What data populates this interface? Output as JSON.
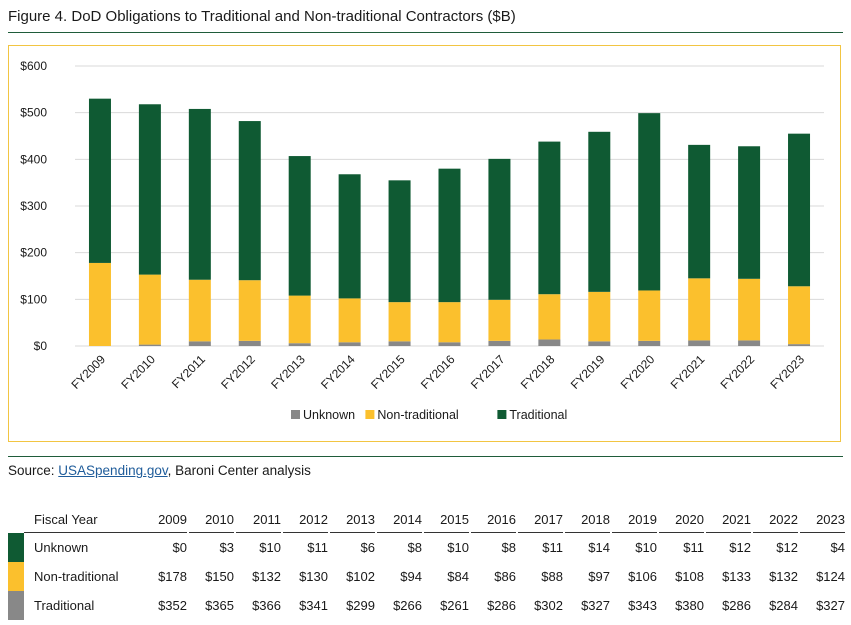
{
  "figure_title": "Figure 4. DoD Obligations to Traditional and Non-traditional Contractors ($B)",
  "source": {
    "prefix": "Source: ",
    "link_text": "USASpending.gov",
    "suffix": ", Baroni Center analysis"
  },
  "colors": {
    "unknown": "#888888",
    "non_traditional": "#fbc02d",
    "traditional": "#0f5a33",
    "accent_rule": "#1f5c3a",
    "border": "#f2c542"
  },
  "chart_data": {
    "type": "bar",
    "stacked": true,
    "categories": [
      "FY2009",
      "FY2010",
      "FY2011",
      "FY2012",
      "FY2013",
      "FY2014",
      "FY2015",
      "FY2016",
      "FY2017",
      "FY2018",
      "FY2019",
      "FY2020",
      "FY2021",
      "FY2022",
      "FY2023"
    ],
    "series": [
      {
        "name": "Unknown",
        "values": [
          0,
          3,
          10,
          11,
          6,
          8,
          10,
          8,
          11,
          14,
          10,
          11,
          12,
          12,
          4
        ]
      },
      {
        "name": "Non-traditional",
        "values": [
          178,
          150,
          132,
          130,
          102,
          94,
          84,
          86,
          88,
          97,
          106,
          108,
          133,
          132,
          124
        ]
      },
      {
        "name": "Traditional",
        "values": [
          352,
          365,
          366,
          341,
          299,
          266,
          261,
          286,
          302,
          327,
          343,
          380,
          286,
          284,
          327
        ]
      }
    ],
    "ylim": [
      0,
      600
    ],
    "yticks": [
      0,
      100,
      200,
      300,
      400,
      500,
      600
    ],
    "ytick_labels": [
      "$0",
      "$100",
      "$200",
      "$300",
      "$400",
      "$500",
      "$600"
    ],
    "grid": true,
    "legend_position": "bottom"
  },
  "table": {
    "header_label": "Fiscal Year",
    "years": [
      "2009",
      "2010",
      "2011",
      "2012",
      "2013",
      "2014",
      "2015",
      "2016",
      "2017",
      "2018",
      "2019",
      "2020",
      "2021",
      "2022",
      "2023"
    ],
    "rows": [
      {
        "label": "Unknown",
        "swatch": "#0f5a33",
        "values": [
          "$0",
          "$3",
          "$10",
          "$11",
          "$6",
          "$8",
          "$10",
          "$8",
          "$11",
          "$14",
          "$10",
          "$11",
          "$12",
          "$12",
          "$4"
        ]
      },
      {
        "label": "Non-traditional",
        "swatch": "#fbc02d",
        "values": [
          "$178",
          "$150",
          "$132",
          "$130",
          "$102",
          "$94",
          "$84",
          "$86",
          "$88",
          "$97",
          "$106",
          "$108",
          "$133",
          "$132",
          "$124"
        ]
      },
      {
        "label": "Traditional",
        "swatch": "#888888",
        "values": [
          "$352",
          "$365",
          "$366",
          "$341",
          "$299",
          "$266",
          "$261",
          "$286",
          "$302",
          "$327",
          "$343",
          "$380",
          "$286",
          "$284",
          "$327"
        ]
      }
    ]
  }
}
